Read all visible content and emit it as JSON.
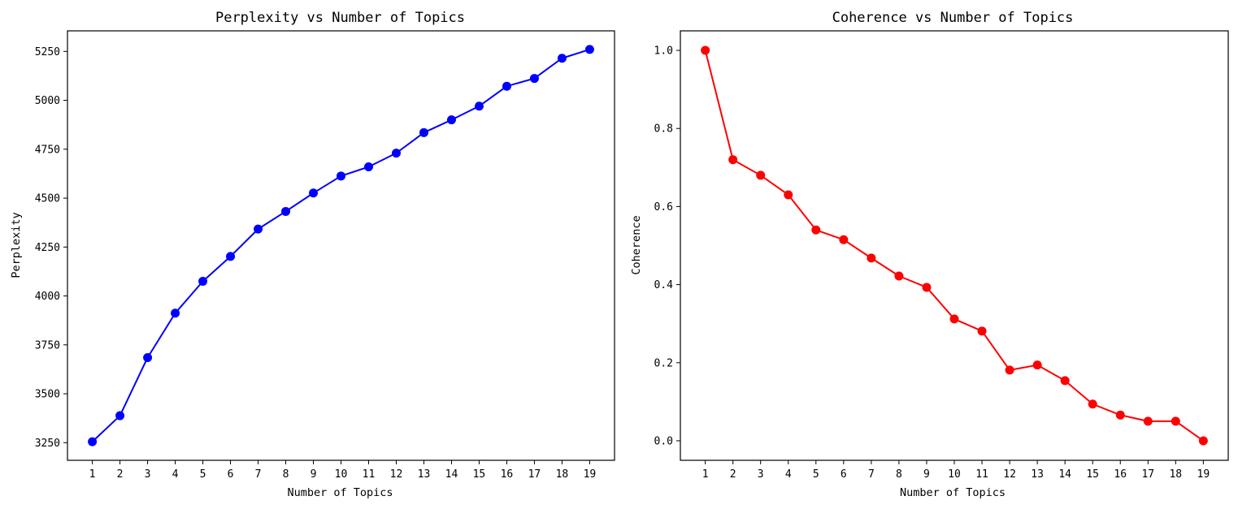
{
  "chart_data": [
    {
      "type": "line",
      "title": "Perplexity vs Number of Topics",
      "xlabel": "Number of Topics",
      "ylabel": "Perplexity",
      "color": "#0000ff",
      "marker": "circle",
      "x": [
        1,
        2,
        3,
        4,
        5,
        6,
        7,
        8,
        9,
        10,
        11,
        12,
        13,
        14,
        15,
        16,
        17,
        18,
        19
      ],
      "values": [
        3255,
        3388,
        3685,
        3912,
        4075,
        4202,
        4342,
        4432,
        4526,
        4613,
        4660,
        4730,
        4835,
        4900,
        4970,
        5072,
        5112,
        5215,
        5260
      ],
      "xlim": [
        0.1,
        19.9
      ],
      "ylim": [
        3160,
        5355
      ],
      "yticks": [
        3250,
        3500,
        3750,
        4000,
        4250,
        4500,
        4750,
        5000,
        5250
      ],
      "ytick_labels": [
        "3250",
        "3500",
        "3750",
        "4000",
        "4250",
        "4500",
        "4750",
        "5000",
        "5250"
      ],
      "xtick_labels": [
        "1",
        "2",
        "3",
        "4",
        "5",
        "6",
        "7",
        "8",
        "9",
        "10",
        "11",
        "12",
        "13",
        "14",
        "15",
        "16",
        "17",
        "18",
        "19"
      ],
      "grid": false
    },
    {
      "type": "line",
      "title": "Coherence vs Number of Topics",
      "xlabel": "Number of Topics",
      "ylabel": "Coherence",
      "color": "#ff0000",
      "marker": "circle",
      "x": [
        1,
        2,
        3,
        4,
        5,
        6,
        7,
        8,
        9,
        10,
        11,
        12,
        13,
        14,
        15,
        16,
        17,
        18,
        19
      ],
      "values": [
        1.0,
        0.72,
        0.68,
        0.63,
        0.54,
        0.515,
        0.468,
        0.422,
        0.393,
        0.312,
        0.281,
        0.181,
        0.194,
        0.154,
        0.094,
        0.066,
        0.05,
        0.05,
        0.0
      ],
      "xlim": [
        0.1,
        19.9
      ],
      "ylim": [
        -0.05,
        1.05
      ],
      "yticks": [
        0.0,
        0.2,
        0.4,
        0.6,
        0.8,
        1.0
      ],
      "ytick_labels": [
        "0.0",
        "0.2",
        "0.4",
        "0.6",
        "0.8",
        "1.0"
      ],
      "xtick_labels": [
        "1",
        "2",
        "3",
        "4",
        "5",
        "6",
        "7",
        "8",
        "9",
        "10",
        "11",
        "12",
        "13",
        "14",
        "15",
        "16",
        "17",
        "18",
        "19"
      ],
      "grid": false
    }
  ]
}
